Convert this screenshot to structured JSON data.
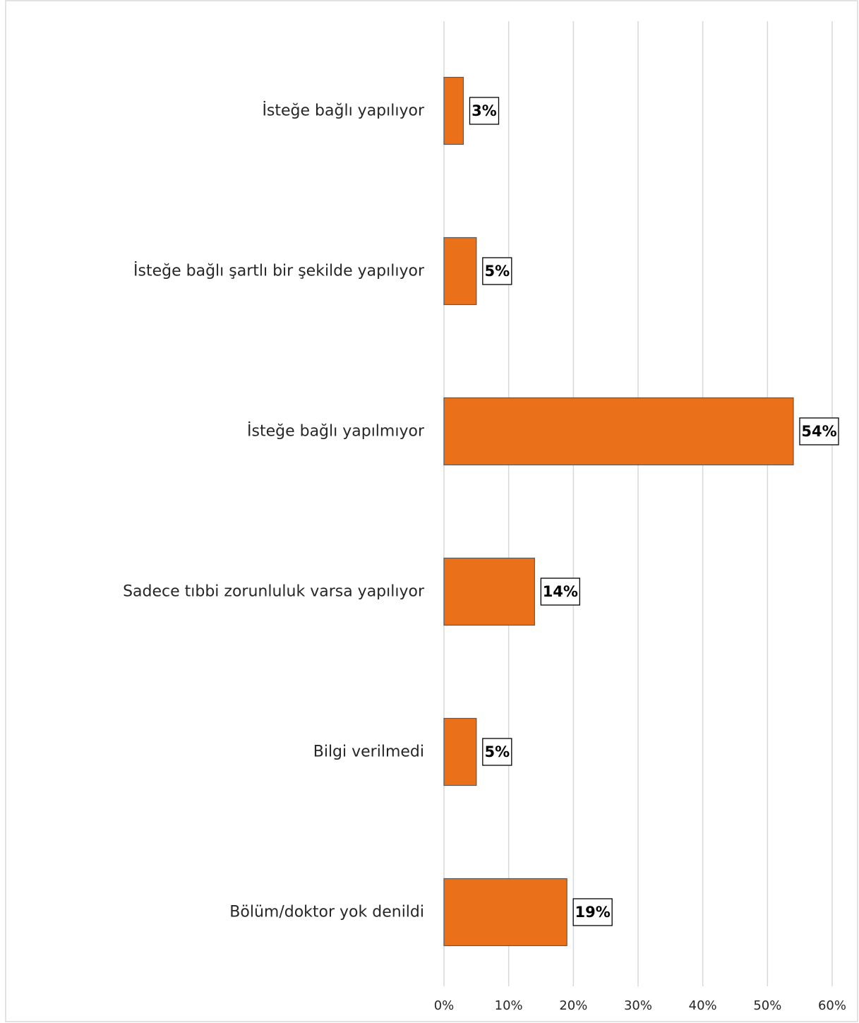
{
  "chart_data": {
    "type": "bar",
    "orientation": "horizontal",
    "title": "",
    "xlabel": "",
    "ylabel": "",
    "categories": [
      "İsteğe bağlı yapılıyor",
      "İsteğe bağlı şartlı bir şekilde yapılıyor",
      "İsteğe bağlı yapılmıyor",
      "Sadece tıbbi zorunluluk varsa yapılıyor",
      "Bilgi verilmedi",
      "Bölüm/doktor yok denildi"
    ],
    "values": [
      3,
      5,
      54,
      14,
      5,
      19
    ],
    "data_labels": [
      "3%",
      "5%",
      "54%",
      "14%",
      "5%",
      "19%"
    ],
    "xlim": [
      0,
      60
    ],
    "x_ticks": [
      0,
      10,
      20,
      30,
      40,
      50,
      60
    ],
    "x_tick_labels": [
      "0%",
      "10%",
      "20%",
      "30%",
      "40%",
      "50%",
      "60%"
    ],
    "grid": "vertical",
    "legend": "none",
    "colors": {
      "bar_fill": "#ea7119",
      "bar_stroke": "#595959",
      "gridline": "#d9d9d9",
      "frame": "#d9d9d9"
    }
  }
}
